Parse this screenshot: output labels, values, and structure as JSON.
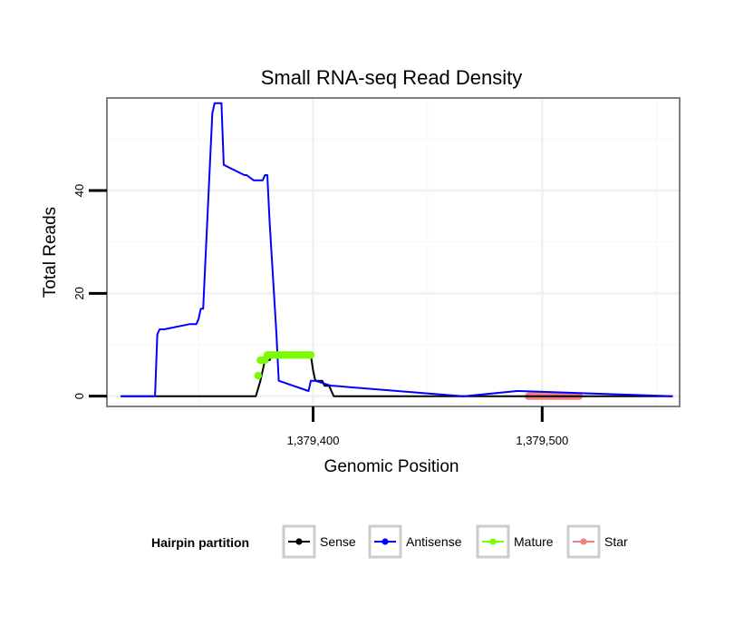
{
  "chart_data": {
    "type": "line",
    "title": "Small RNA-seq Read Density",
    "xlabel": "Genomic Position",
    "ylabel": "Total Reads",
    "xlim": [
      1379310,
      1379560
    ],
    "ylim": [
      -2,
      58
    ],
    "x_ticks": [
      1379400,
      1379500
    ],
    "x_tick_labels": [
      "1,379,400",
      "1,379,500"
    ],
    "y_ticks": [
      0,
      20,
      40
    ],
    "y_tick_labels": [
      "0",
      "20",
      "40"
    ],
    "grid": true,
    "legend": {
      "title": "Hairpin partition",
      "position": "bottom",
      "entries": [
        {
          "name": "Sense",
          "color": "#000000"
        },
        {
          "name": "Antisense",
          "color": "#0000ff"
        },
        {
          "name": "Mature",
          "color": "#7cfc00"
        },
        {
          "name": "Star",
          "color": "#f08080"
        }
      ]
    },
    "series": [
      {
        "name": "Sense",
        "color": "#000000",
        "style": "line",
        "x": [
          1379316,
          1379375,
          1379377,
          1379378,
          1379379,
          1379380,
          1379381,
          1379382,
          1379399,
          1379400,
          1379401,
          1379404,
          1379405,
          1379407,
          1379408,
          1379409,
          1379557
        ],
        "y": [
          0,
          0,
          3,
          5,
          7,
          7,
          7,
          8,
          8,
          5,
          3,
          3,
          2,
          2,
          1,
          0,
          0
        ]
      },
      {
        "name": "Antisense",
        "color": "#0000ff",
        "style": "line",
        "x": [
          1379316,
          1379331,
          1379332,
          1379333,
          1379334,
          1379335,
          1379346,
          1379347,
          1379348,
          1379349,
          1379350,
          1379351,
          1379352,
          1379356,
          1379357,
          1379358,
          1379359,
          1379360,
          1379361,
          1379370,
          1379371,
          1379374,
          1379375,
          1379376,
          1379377,
          1379378,
          1379379,
          1379380,
          1379381,
          1379384,
          1379385,
          1379398,
          1379399,
          1379400,
          1379401,
          1379408,
          1379409,
          1379465,
          1379466,
          1379489,
          1379490,
          1379557
        ],
        "y": [
          0,
          0,
          12,
          13,
          13,
          13,
          14,
          14,
          14,
          14,
          15,
          17,
          17,
          55,
          57,
          57,
          57,
          57,
          45,
          43,
          43,
          42,
          42,
          42,
          42,
          42,
          43,
          43,
          34,
          12,
          3,
          1,
          3,
          3,
          3,
          2,
          2,
          0,
          0,
          1,
          1,
          0
        ]
      },
      {
        "name": "Mature",
        "color": "#7cfc00",
        "style": "points",
        "x": [
          1379376,
          1379377,
          1379378,
          1379379,
          1379380,
          1379381,
          1379382,
          1379383,
          1379384,
          1379385,
          1379386,
          1379387,
          1379388,
          1379389,
          1379390,
          1379391,
          1379392,
          1379393,
          1379394,
          1379395,
          1379396,
          1379397,
          1379398,
          1379399
        ],
        "y": [
          4,
          7,
          7,
          7,
          8,
          8,
          8,
          8,
          8,
          8,
          8,
          8,
          8,
          8,
          8,
          8,
          8,
          8,
          8,
          8,
          8,
          8,
          8,
          8
        ]
      },
      {
        "name": "Star",
        "color": "#f08080",
        "style": "points",
        "x": [
          1379494,
          1379495,
          1379496,
          1379497,
          1379498,
          1379499,
          1379500,
          1379501,
          1379502,
          1379503,
          1379504,
          1379505,
          1379506,
          1379507,
          1379508,
          1379509,
          1379510,
          1379511,
          1379512,
          1379513,
          1379514,
          1379515,
          1379516
        ],
        "y": [
          0,
          0,
          0,
          0,
          0,
          0,
          0,
          0,
          0,
          0,
          0,
          0,
          0,
          0,
          0,
          0,
          0,
          0,
          0,
          0,
          0,
          0,
          0
        ]
      }
    ]
  }
}
